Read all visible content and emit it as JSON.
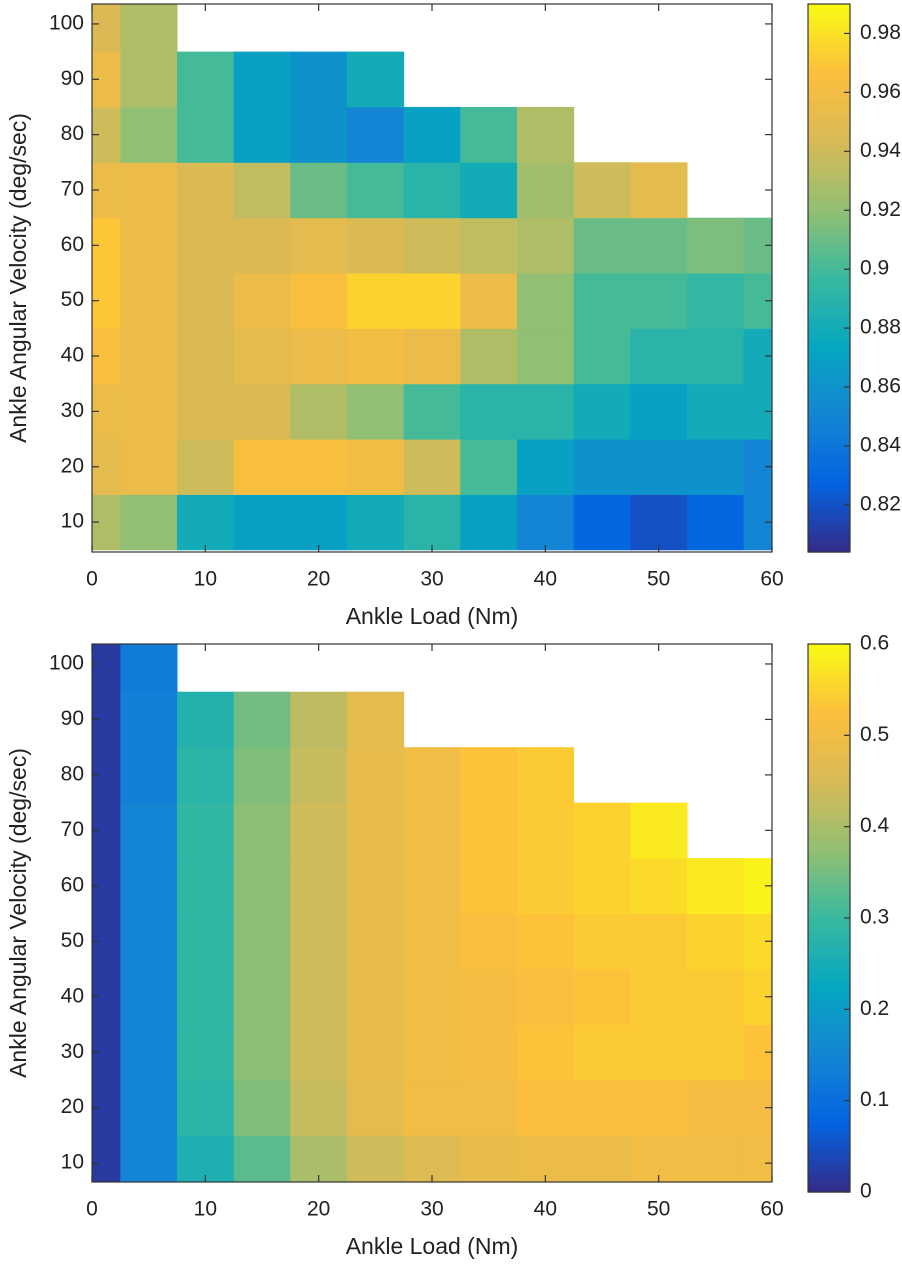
{
  "chart_data": [
    {
      "type": "contour",
      "colormap": "parula",
      "xlabel": "Ankle Load (Nm)",
      "ylabel": "Ankle Angular Velocity (deg/sec)",
      "xlim": [
        0,
        60
      ],
      "ylim": [
        4.6,
        103.6
      ],
      "xticks": [
        0,
        10,
        20,
        30,
        40,
        50,
        60
      ],
      "yticks": [
        10,
        20,
        30,
        40,
        50,
        60,
        70,
        80,
        90,
        100
      ],
      "zlim": [
        0.804,
        0.99
      ],
      "zticks": [
        0.82,
        0.84,
        0.86,
        0.88,
        0.9,
        0.92,
        0.94,
        0.96,
        0.98
      ],
      "x": [
        0,
        5,
        10,
        15,
        20,
        25,
        30,
        35,
        40,
        45,
        50,
        55,
        60
      ],
      "y": [
        10,
        20,
        30,
        40,
        50,
        60,
        70,
        80,
        90,
        100
      ],
      "z": [
        [
          0.93,
          0.92,
          0.88,
          0.87,
          0.87,
          0.88,
          0.89,
          0.87,
          0.85,
          0.83,
          0.82,
          0.83,
          0.85
        ],
        [
          0.95,
          0.955,
          0.94,
          0.965,
          0.965,
          0.96,
          0.94,
          0.9,
          0.87,
          0.86,
          0.86,
          0.86,
          0.85
        ],
        [
          0.955,
          0.955,
          0.945,
          0.945,
          0.93,
          0.92,
          0.9,
          0.89,
          0.89,
          0.88,
          0.87,
          0.88,
          0.88
        ],
        [
          0.965,
          0.955,
          0.945,
          0.95,
          0.955,
          0.96,
          0.955,
          0.93,
          0.92,
          0.9,
          0.89,
          0.89,
          0.88
        ],
        [
          0.97,
          0.955,
          0.945,
          0.955,
          0.965,
          0.975,
          0.975,
          0.955,
          0.92,
          0.9,
          0.9,
          0.895,
          0.9
        ],
        [
          0.97,
          0.955,
          0.945,
          0.945,
          0.95,
          0.945,
          0.94,
          0.935,
          0.93,
          0.91,
          0.91,
          0.915,
          0.91
        ],
        [
          0.955,
          0.955,
          0.945,
          0.935,
          0.91,
          0.9,
          0.89,
          0.88,
          0.925,
          0.94,
          0.95,
          null,
          null
        ],
        [
          0.94,
          0.92,
          0.9,
          0.87,
          0.86,
          0.85,
          0.87,
          0.9,
          0.93,
          null,
          null,
          null,
          null
        ],
        [
          0.955,
          0.93,
          0.9,
          0.87,
          0.86,
          0.88,
          null,
          null,
          null,
          null,
          null,
          null,
          null
        ],
        [
          0.945,
          0.93,
          null,
          null,
          null,
          null,
          null,
          null,
          null,
          null,
          null,
          null,
          null
        ]
      ]
    },
    {
      "type": "contour",
      "colormap": "parula",
      "xlabel": "Ankle Load (Nm)",
      "ylabel": "Ankle Angular Velocity (deg/sec)",
      "xlim": [
        0,
        60
      ],
      "ylim": [
        6.6,
        103.6
      ],
      "xticks": [
        0,
        10,
        20,
        30,
        40,
        50,
        60
      ],
      "yticks": [
        10,
        20,
        30,
        40,
        50,
        60,
        70,
        80,
        90,
        100
      ],
      "zlim": [
        0,
        0.6
      ],
      "zticks": [
        0,
        0.1,
        0.2,
        0.3,
        0.4,
        0.5,
        0.6
      ],
      "x": [
        0,
        5,
        10,
        15,
        20,
        25,
        30,
        35,
        40,
        45,
        50,
        55,
        60
      ],
      "y": [
        10,
        20,
        30,
        40,
        50,
        60,
        70,
        80,
        90,
        100
      ],
      "z": [
        [
          0.02,
          0.15,
          0.26,
          0.33,
          0.4,
          0.44,
          0.46,
          0.48,
          0.49,
          0.49,
          0.5,
          0.5,
          0.5
        ],
        [
          0.02,
          0.15,
          0.28,
          0.36,
          0.43,
          0.47,
          0.5,
          0.5,
          0.52,
          0.52,
          0.52,
          0.51,
          0.51
        ],
        [
          0.02,
          0.15,
          0.29,
          0.37,
          0.44,
          0.48,
          0.5,
          0.51,
          0.53,
          0.54,
          0.54,
          0.54,
          0.53
        ],
        [
          0.02,
          0.15,
          0.29,
          0.37,
          0.44,
          0.48,
          0.5,
          0.51,
          0.52,
          0.53,
          0.54,
          0.54,
          0.55
        ],
        [
          0.02,
          0.15,
          0.29,
          0.37,
          0.44,
          0.48,
          0.5,
          0.52,
          0.53,
          0.54,
          0.54,
          0.55,
          0.56
        ],
        [
          0.02,
          0.15,
          0.29,
          0.37,
          0.44,
          0.48,
          0.5,
          0.53,
          0.54,
          0.55,
          0.56,
          0.58,
          0.59
        ],
        [
          0.02,
          0.15,
          0.29,
          0.37,
          0.44,
          0.48,
          0.5,
          0.53,
          0.54,
          0.55,
          0.58,
          null,
          null
        ],
        [
          0.02,
          0.14,
          0.28,
          0.36,
          0.43,
          0.48,
          0.5,
          0.53,
          0.54,
          null,
          null,
          null,
          null
        ],
        [
          0.02,
          0.14,
          0.27,
          0.35,
          0.42,
          0.47,
          null,
          null,
          null,
          null,
          null,
          null,
          null
        ],
        [
          0.02,
          0.13,
          null,
          null,
          null,
          null,
          null,
          null,
          null,
          null,
          null,
          null,
          null
        ]
      ]
    }
  ]
}
